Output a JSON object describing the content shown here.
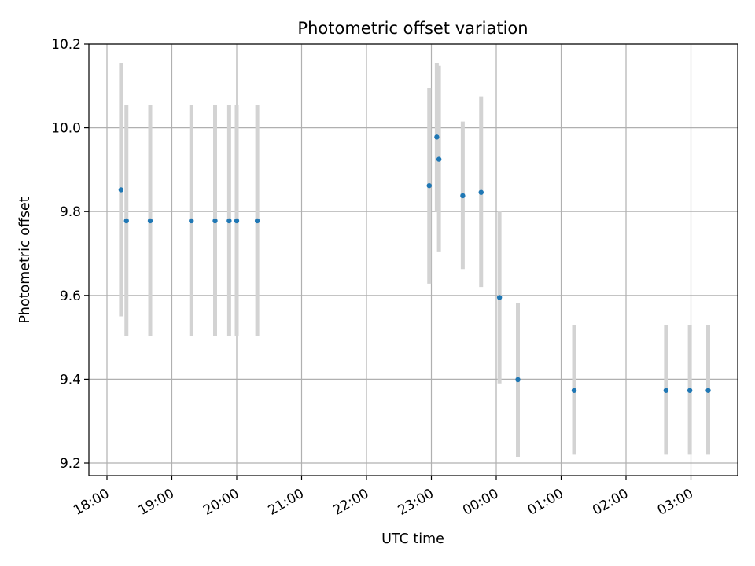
{
  "chart_data": {
    "type": "scatter",
    "title": "Photometric offset variation",
    "xlabel": "UTC time",
    "ylabel": "Photometric offset",
    "x_unit": "hours",
    "x_ticks": [
      "18:00",
      "19:00",
      "20:00",
      "21:00",
      "22:00",
      "23:00",
      "00:00",
      "01:00",
      "02:00",
      "03:00"
    ],
    "y_ticks": [
      "9.2",
      "9.4",
      "9.6",
      "9.8",
      "10.0",
      "10.2"
    ],
    "ylim": [
      9.17,
      10.2
    ],
    "grid": true,
    "colors": {
      "point": "#1f77b4",
      "error_bar": "#d3d3d3",
      "grid": "#b0b0b0"
    },
    "series": [
      {
        "points": [
          {
            "time": "18:13",
            "y": 9.852,
            "yerr_low": 9.55,
            "yerr_high": 10.155
          },
          {
            "time": "18:18",
            "y": 9.778,
            "yerr_low": 9.503,
            "yerr_high": 10.055
          },
          {
            "time": "18:40",
            "y": 9.778,
            "yerr_low": 9.503,
            "yerr_high": 10.055
          },
          {
            "time": "19:18",
            "y": 9.778,
            "yerr_low": 9.503,
            "yerr_high": 10.055
          },
          {
            "time": "19:40",
            "y": 9.778,
            "yerr_low": 9.503,
            "yerr_high": 10.055
          },
          {
            "time": "19:53",
            "y": 9.778,
            "yerr_low": 9.503,
            "yerr_high": 10.055
          },
          {
            "time": "20:00",
            "y": 9.778,
            "yerr_low": 9.503,
            "yerr_high": 10.055
          },
          {
            "time": "20:19",
            "y": 9.778,
            "yerr_low": 9.503,
            "yerr_high": 10.055
          },
          {
            "time": "22:58",
            "y": 9.862,
            "yerr_low": 9.628,
            "yerr_high": 10.095
          },
          {
            "time": "23:05",
            "y": 9.978,
            "yerr_low": 9.8,
            "yerr_high": 10.155
          },
          {
            "time": "23:07",
            "y": 9.925,
            "yerr_low": 9.705,
            "yerr_high": 10.148
          },
          {
            "time": "23:29",
            "y": 9.838,
            "yerr_low": 9.663,
            "yerr_high": 10.015
          },
          {
            "time": "23:46",
            "y": 9.846,
            "yerr_low": 9.62,
            "yerr_high": 10.075
          },
          {
            "time": "00:03",
            "y": 9.595,
            "yerr_low": 9.39,
            "yerr_high": 9.802
          },
          {
            "time": "00:20",
            "y": 9.399,
            "yerr_low": 9.215,
            "yerr_high": 9.582
          },
          {
            "time": "01:12",
            "y": 9.373,
            "yerr_low": 9.22,
            "yerr_high": 9.53
          },
          {
            "time": "02:37",
            "y": 9.373,
            "yerr_low": 9.22,
            "yerr_high": 9.53
          },
          {
            "time": "02:59",
            "y": 9.373,
            "yerr_low": 9.22,
            "yerr_high": 9.53
          },
          {
            "time": "03:16",
            "y": 9.373,
            "yerr_low": 9.22,
            "yerr_high": 9.53
          }
        ]
      }
    ]
  }
}
